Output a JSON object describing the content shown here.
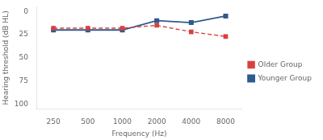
{
  "chart_data": {
    "type": "line",
    "x": [
      250,
      500,
      1000,
      2000,
      4000,
      8000
    ],
    "series": [
      {
        "name": "Older Group",
        "color": "#d94040",
        "values": [
          18,
          18,
          18,
          15,
          22,
          27
        ],
        "marker": "square",
        "line_style": "dashed"
      },
      {
        "name": "Younger Group",
        "color": "#2e5a8e",
        "values": [
          20,
          20,
          20,
          10,
          12,
          5
        ],
        "marker": "square",
        "line_style": "solid"
      }
    ],
    "x_label": "Frequency (Hz)",
    "y_label": "Hearing threshold (dB HL)",
    "log": "x",
    "xlim": [
      180,
      11000
    ],
    "xticks": [
      250,
      500,
      1000,
      2000,
      4000,
      8000
    ],
    "ylim": [
      105,
      -5
    ],
    "yticks": [
      0,
      25,
      50,
      75,
      100
    ],
    "grid": false,
    "legend": "right"
  }
}
